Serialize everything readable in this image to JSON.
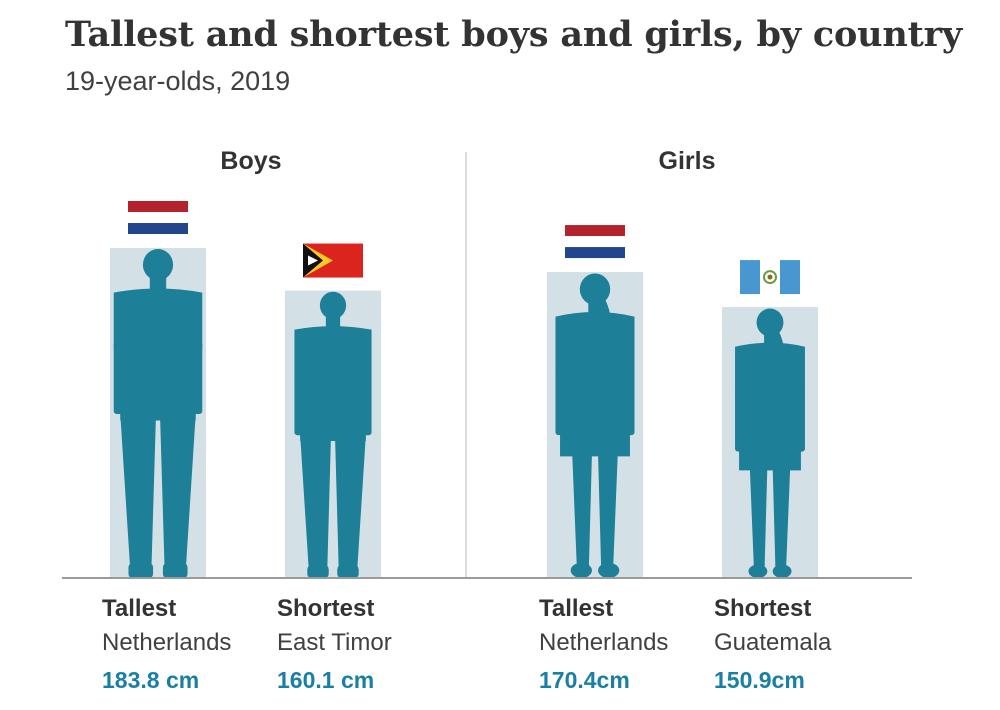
{
  "title": "Tallest and shortest boys and girls, by country",
  "subtitle": "19-year-olds, 2019",
  "colors": {
    "figure": "#1d7f98",
    "column": "#d3e1e6",
    "value_text": "#1a7fa6",
    "axis": "#9a9a9a"
  },
  "chart_data": {
    "type": "bar",
    "title": "Tallest and shortest boys and girls, by country",
    "subtitle": "19-year-olds, 2019",
    "unit": "cm",
    "groups": [
      "Boys",
      "Girls"
    ],
    "bars": [
      {
        "group": "Boys",
        "rank": "Tallest",
        "country": "Netherlands",
        "value": 183.8,
        "value_label": "183.8 cm",
        "flag": "netherlands-flag",
        "figure": "male-silhouette-icon"
      },
      {
        "group": "Boys",
        "rank": "Shortest",
        "country": "East Timor",
        "value": 160.1,
        "value_label": "160.1 cm",
        "flag": "east-timor-flag",
        "figure": "male-silhouette-icon"
      },
      {
        "group": "Girls",
        "rank": "Tallest",
        "country": "Netherlands",
        "value": 170.4,
        "value_label": "170.4cm",
        "flag": "netherlands-flag",
        "figure": "female-silhouette-icon"
      },
      {
        "group": "Girls",
        "rank": "Shortest",
        "country": "Guatemala",
        "value": 150.9,
        "value_label": "150.9cm",
        "flag": "guatemala-flag",
        "figure": "female-silhouette-icon"
      }
    ]
  }
}
